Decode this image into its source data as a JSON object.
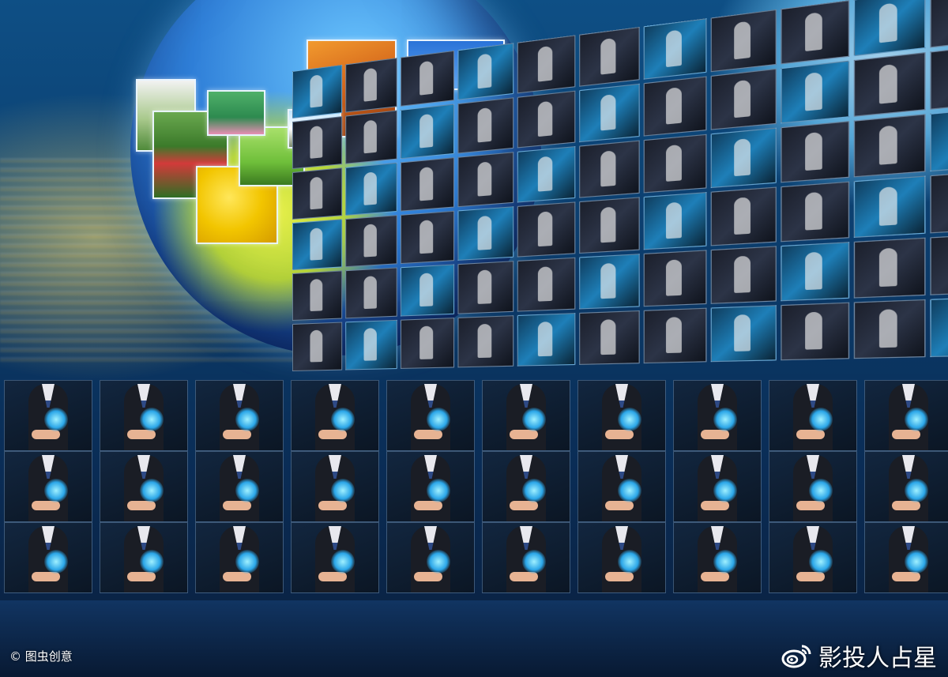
{
  "watermarks": {
    "left": "© 图虫创意",
    "right": "影投人占星"
  },
  "icons": {
    "weibo": "weibo-logo-icon"
  },
  "colors": {
    "background": "#0b2a4a",
    "globe_blue": "#2f7fd8",
    "land_yellow": "#b7d63b"
  }
}
